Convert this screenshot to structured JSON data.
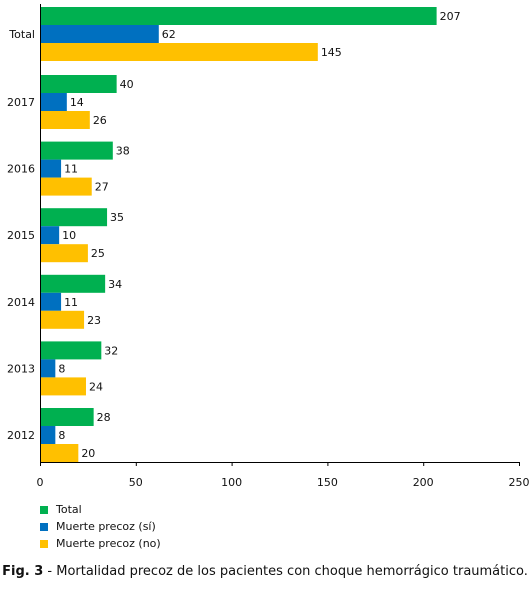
{
  "chart_data": {
    "type": "bar",
    "orientation": "horizontal",
    "categories": [
      "Total",
      "2017",
      "2016",
      "2015",
      "2014",
      "2013",
      "2012"
    ],
    "series": [
      {
        "name": "Total",
        "color": "#00b050",
        "values": [
          207,
          40,
          38,
          35,
          34,
          32,
          28
        ]
      },
      {
        "name": "Muerte precoz (sí)",
        "color": "#0070c0",
        "values": [
          62,
          14,
          11,
          10,
          11,
          8,
          8
        ]
      },
      {
        "name": "Muerte precoz (no)",
        "color": "#ffc000",
        "values": [
          145,
          26,
          27,
          25,
          23,
          24,
          20
        ]
      }
    ],
    "xlim": [
      0,
      250
    ],
    "x_ticks": [
      0,
      50,
      100,
      150,
      200,
      250
    ],
    "legend_position": "bottom-left",
    "grid": false
  },
  "caption": {
    "label": "Fig. 3",
    "text": " - Mortalidad precoz de los pacientes con choque hemorrágico traumático."
  }
}
